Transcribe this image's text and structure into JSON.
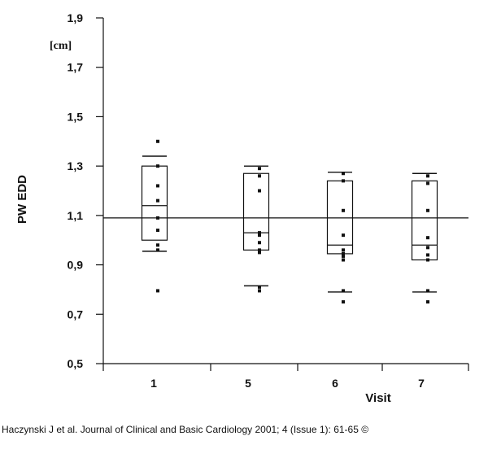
{
  "chart_data": {
    "type": "box",
    "ylabel": "PW EDD",
    "y_unit": "[cm]",
    "xlabel": "Visit",
    "ylim": [
      0.5,
      1.9
    ],
    "yticks": [
      "1,9",
      "1,7",
      "1,5",
      "1,3",
      "1,1",
      "0,9",
      "0,7",
      "0,5"
    ],
    "ytick_values": [
      1.9,
      1.7,
      1.5,
      1.3,
      1.1,
      0.9,
      0.7,
      0.5
    ],
    "categories": [
      "1",
      "5",
      "6",
      "7"
    ],
    "reference_line": 1.09,
    "boxes": [
      {
        "visit": "1",
        "whisker_high": 1.34,
        "q3": 1.3,
        "median": 1.14,
        "q1": 1.0,
        "whisker_low": 0.955,
        "points": [
          1.4,
          1.3,
          1.22,
          1.16,
          1.09,
          1.04,
          0.98,
          0.96,
          0.795
        ]
      },
      {
        "visit": "5",
        "whisker_high": 1.3,
        "q3": 1.27,
        "median": 1.03,
        "q1": 0.96,
        "whisker_low": 0.815,
        "points": [
          1.29,
          1.26,
          1.2,
          1.03,
          1.02,
          0.99,
          0.96,
          0.95,
          0.81,
          0.795
        ]
      },
      {
        "visit": "6",
        "whisker_high": 1.275,
        "q3": 1.24,
        "median": 0.98,
        "q1": 0.945,
        "whisker_low": 0.79,
        "points": [
          1.27,
          1.24,
          1.12,
          1.02,
          0.96,
          0.945,
          0.935,
          0.92,
          0.795,
          0.75
        ]
      },
      {
        "visit": "7",
        "whisker_high": 1.27,
        "q3": 1.24,
        "median": 0.98,
        "q1": 0.92,
        "whisker_low": 0.79,
        "points": [
          1.26,
          1.23,
          1.12,
          1.01,
          0.97,
          0.94,
          0.92,
          0.795,
          0.75
        ]
      }
    ]
  },
  "citation": "Haczynski J et al. Journal of Clinical and Basic Cardiology 2001; 4 (Issue 1): 61-65 ©"
}
